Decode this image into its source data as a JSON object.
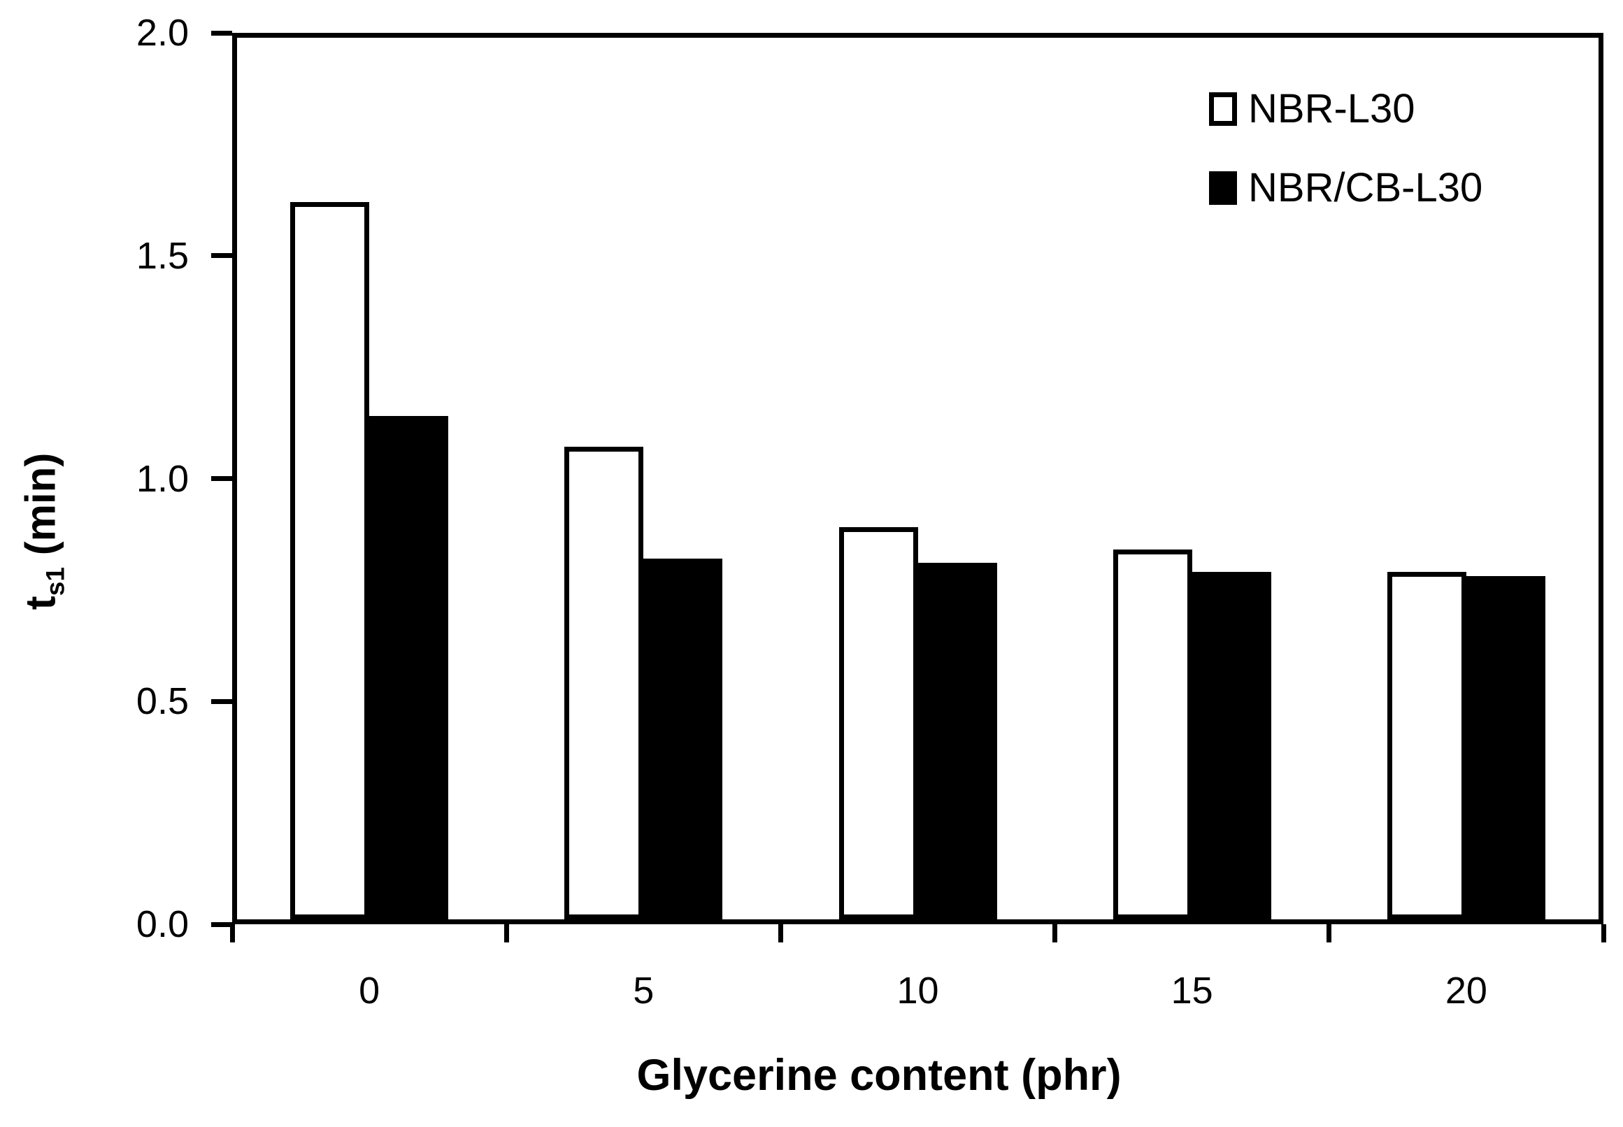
{
  "chart_data": {
    "type": "bar",
    "title": "",
    "xlabel": "Glycerine content (phr)",
    "ylabel": "t_s1 (min)",
    "ylabel_parts": {
      "main": "t",
      "sub": "s1",
      "rest": " (min)"
    },
    "categories": [
      "0",
      "5",
      "10",
      "15",
      "20"
    ],
    "series": [
      {
        "name": "NBR-L30",
        "fill": "#ffffff",
        "border": "#000000",
        "values": [
          1.61,
          1.06,
          0.88,
          0.83,
          0.78
        ]
      },
      {
        "name": "NBR/CB-L30",
        "fill": "#000000",
        "border": "#000000",
        "values": [
          1.13,
          0.81,
          0.8,
          0.78,
          0.77
        ]
      }
    ],
    "ylim": [
      0.0,
      2.0
    ],
    "yticks": [
      "0.0",
      "0.5",
      "1.0",
      "1.5",
      "2.0"
    ],
    "xticks": [
      "0",
      "5",
      "10",
      "15",
      "20"
    ],
    "grid": false,
    "legend_position": "top-right",
    "frame": "full-box",
    "colors": {
      "axis": "#000000",
      "background": "#ffffff"
    }
  },
  "legend": {
    "items": [
      {
        "label": "NBR-L30"
      },
      {
        "label": "NBR/CB-L30"
      }
    ]
  }
}
